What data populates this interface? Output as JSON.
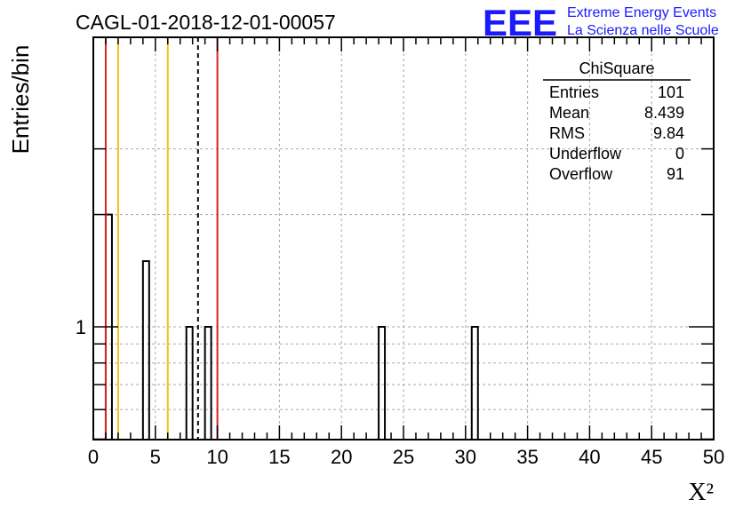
{
  "chart_data": {
    "type": "bar",
    "title": "CAGL-01-2018-12-01-00057",
    "xlabel": "X²",
    "ylabel": "Entries/bin",
    "xlim": [
      0,
      50
    ],
    "ylog": true,
    "x_ticks": [
      "0",
      "5",
      "10",
      "15",
      "20",
      "25",
      "30",
      "35",
      "40",
      "45",
      "50"
    ],
    "y_ticks": [
      "1"
    ],
    "grid": true,
    "bin_width": 0.5,
    "bins": [
      {
        "x": 1.0,
        "value": 2
      },
      {
        "x": 4.0,
        "value": 1.5
      },
      {
        "x": 7.5,
        "value": 1
      },
      {
        "x": 9.0,
        "value": 1
      },
      {
        "x": 23.0,
        "value": 1
      },
      {
        "x": 30.5,
        "value": 1
      }
    ],
    "vlines": [
      {
        "x": 1.0,
        "color": "#dd2222",
        "style": "solid"
      },
      {
        "x": 2.0,
        "color": "#f2c21a",
        "style": "solid"
      },
      {
        "x": 6.0,
        "color": "#f2c21a",
        "style": "solid"
      },
      {
        "x": 8.439,
        "color": "#000000",
        "style": "dashed"
      },
      {
        "x": 10.0,
        "color": "#dd2222",
        "style": "solid"
      }
    ],
    "stats_box": {
      "title": "ChiSquare",
      "rows": [
        {
          "label": "Entries",
          "value": "101"
        },
        {
          "label": "Mean",
          "value": "8.439"
        },
        {
          "label": "RMS",
          "value": "9.84"
        },
        {
          "label": "Underflow",
          "value": "0"
        },
        {
          "label": "Overflow",
          "value": "91"
        }
      ]
    }
  },
  "logo": {
    "letters": "EEE",
    "line1": "Extreme Energy Events",
    "line2": "La Scienza nelle Scuole"
  }
}
